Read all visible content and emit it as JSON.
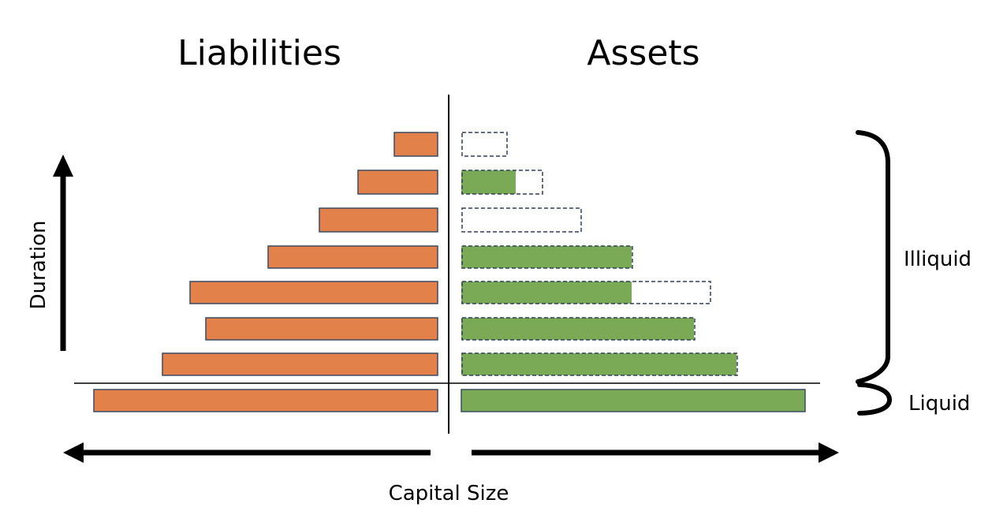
{
  "headings": {
    "liabilities": "Liabilities",
    "assets": "Assets"
  },
  "labels": {
    "duration": "Duration",
    "capital_size": "Capital Size",
    "illiquid": "Illiquid",
    "liquid": "Liquid"
  },
  "colors": {
    "liability_fill": "#E2824A",
    "asset_fill": "#7BAA57",
    "bar_border": "#3B4A63",
    "outline_dash": "#2F3E5C",
    "line": "#000000"
  },
  "rows": [
    {
      "liability": 55,
      "asset_capacity": 57,
      "asset_filled": 0
    },
    {
      "liability": 101,
      "asset_capacity": 102,
      "asset_filled": 69
    },
    {
      "liability": 150,
      "asset_capacity": 151,
      "asset_filled": 0
    },
    {
      "liability": 215,
      "asset_capacity": 216,
      "asset_filled": 216
    },
    {
      "liability": 314,
      "asset_capacity": 315,
      "asset_filled": 216
    },
    {
      "liability": 294,
      "asset_capacity": 295,
      "asset_filled": 295
    },
    {
      "liability": 349,
      "asset_capacity": 349,
      "asset_filled": 349
    },
    {
      "liability": 436,
      "asset_capacity": 436,
      "asset_filled": 436
    }
  ]
}
